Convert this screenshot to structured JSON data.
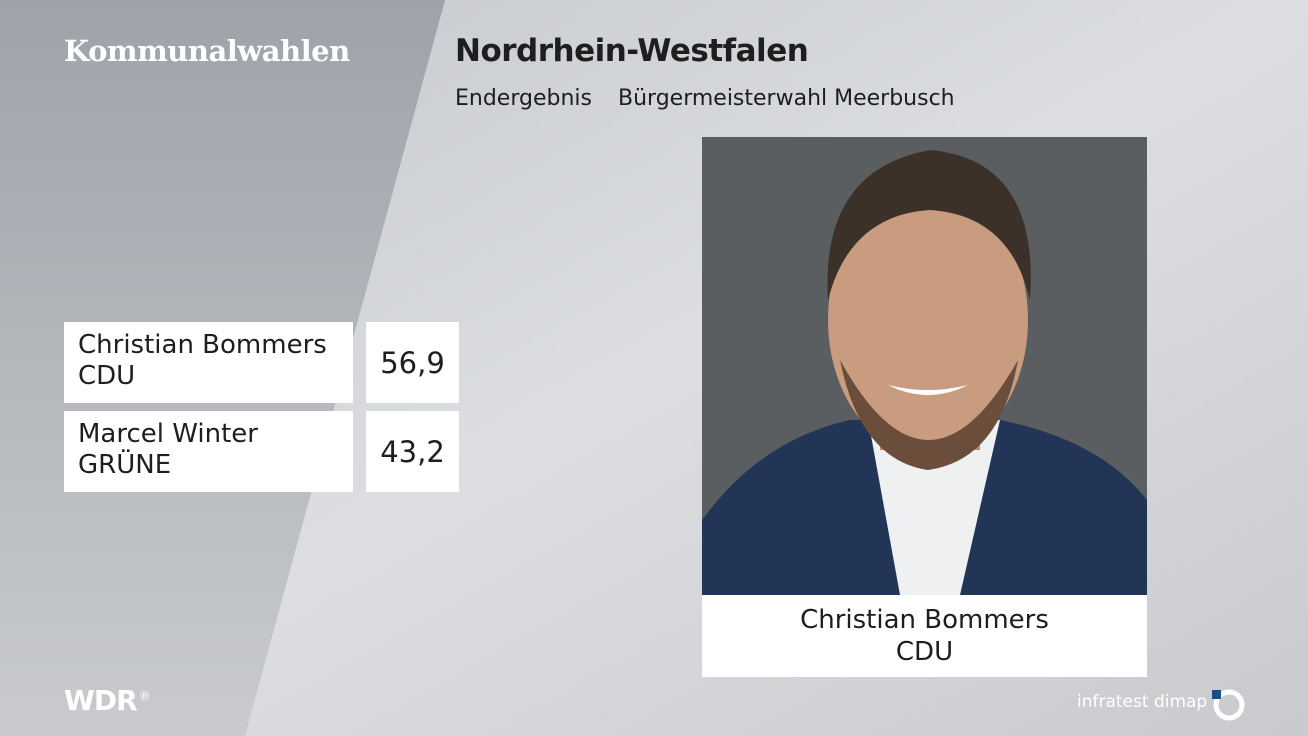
{
  "header": {
    "brand": "Kommunalwahlen",
    "title": "Nordrhein-Westfalen",
    "label": "Endergebnis",
    "subtitle": "Bürgermeisterwahl Meerbusch"
  },
  "table": {
    "rows": [
      [
        "Christian Bommers",
        "CDU",
        "56,9"
      ],
      [
        "Marcel Winter",
        "GRÜNE",
        "43,2"
      ]
    ]
  },
  "photo": {
    "caption": [
      "Christian Bommers",
      "CDU"
    ]
  },
  "footer": {
    "broadcaster": "WDR",
    "mark": "®",
    "source": "infratest dimap"
  }
}
